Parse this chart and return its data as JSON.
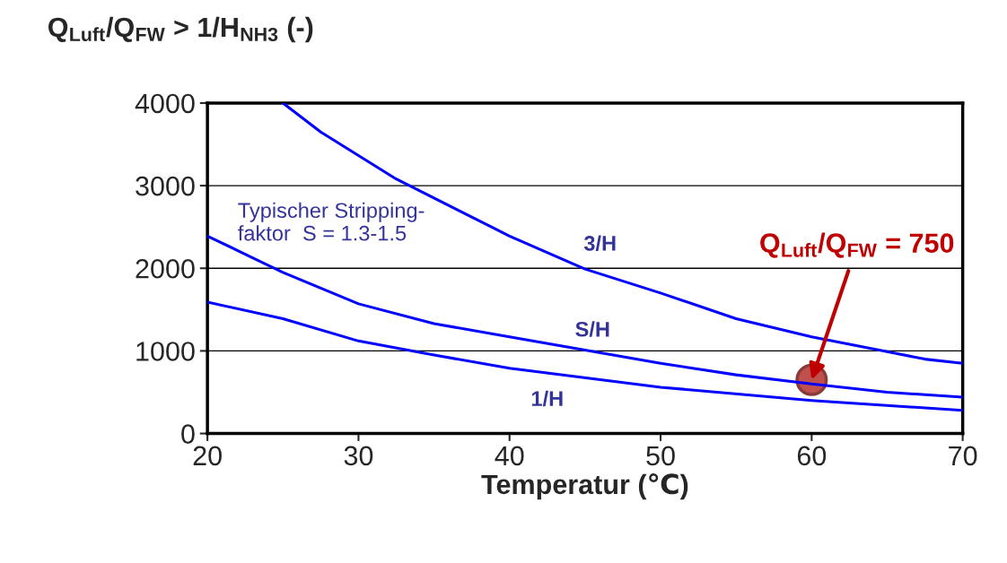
{
  "chart_data": {
    "type": "line",
    "title": "Q$_{Luft}$/Q$_{FW}$ > 1/H$_{NH3}$ (-)",
    "xlabel": "Temperatur (℃)",
    "xlim": [
      20,
      70
    ],
    "xticks": [
      20,
      30,
      40,
      50,
      60,
      70
    ],
    "ylim": [
      0,
      4000
    ],
    "yticks": [
      0,
      1000,
      2000,
      3000,
      4000
    ],
    "grid": "y",
    "series": [
      {
        "color": "#0000ff",
        "x": [
          25,
          27.5,
          32.5,
          40,
          45,
          50,
          55,
          60,
          65,
          67.5,
          70
        ],
        "values": [
          4000,
          3650,
          3080,
          2390,
          1990,
          1700,
          1390,
          1170,
          990,
          900,
          850
        ]
      },
      {
        "color": "#0000ff",
        "x": [
          20,
          22.5,
          25,
          30,
          35,
          40,
          45,
          50,
          55,
          60,
          65,
          70
        ],
        "values": [
          2390,
          2170,
          1950,
          1570,
          1330,
          1170,
          1010,
          850,
          710,
          600,
          500,
          440
        ]
      },
      {
        "color": "#0000ff",
        "x": [
          20,
          25,
          30,
          35,
          40,
          50,
          60,
          70
        ],
        "values": [
          1590,
          1390,
          1120,
          950,
          790,
          560,
          400,
          280
        ]
      },
      {
        "type": "scatter",
        "color": "#c0504d",
        "x": [
          60
        ],
        "values": [
          650
        ]
      }
    ],
    "annotations": [
      "3/H",
      "S/H",
      "1/H",
      "Typischer Stripping-\nfaktor  S = 1.3-1.5",
      {
        "text": "Q$_{Luft}$/Q$_{FW}$ = 750",
        "x": 60,
        "y": 650
      }
    ]
  }
}
